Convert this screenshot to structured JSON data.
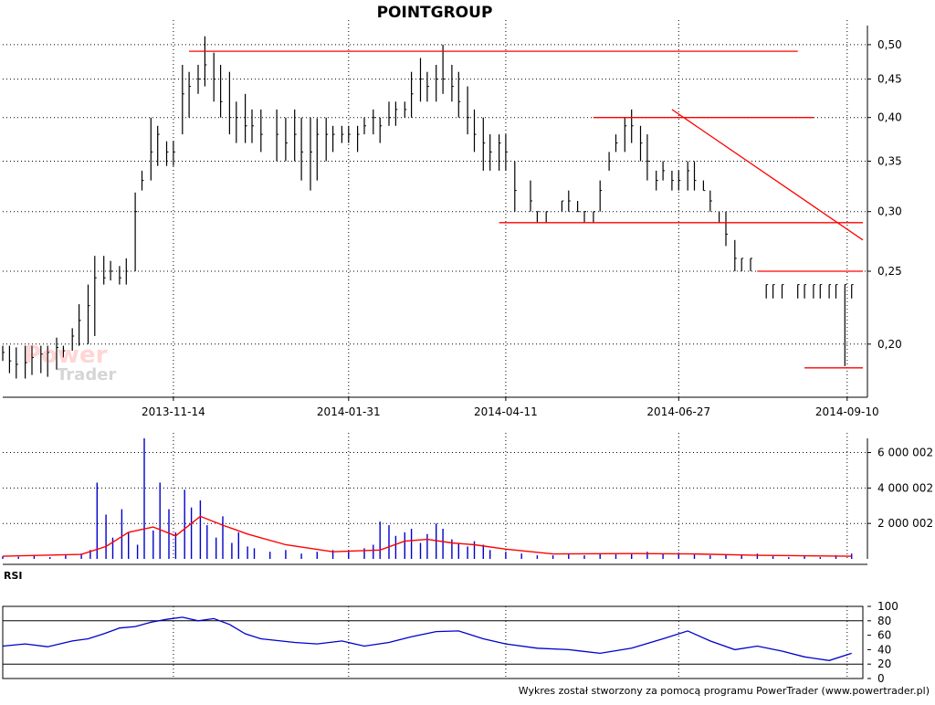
{
  "chart_data": [
    {
      "panel": "price",
      "type": "bar",
      "style": "ohlc-bars",
      "title": "POINTGROUP",
      "y_scale": "log",
      "ylim": [
        0.17,
        0.53
      ],
      "y_ticks": [
        "0,50",
        "0,45",
        "0,40",
        "0,35",
        "0,30",
        "0,25",
        "0,20"
      ],
      "y_tick_values": [
        0.5,
        0.45,
        0.4,
        0.35,
        0.3,
        0.25,
        0.2
      ],
      "x_ticks": [
        "2013-11-14",
        "2014-01-31",
        "2014-04-11",
        "2014-06-27",
        "2014-09-10"
      ],
      "x_tick_dates": [
        "2013-11-14",
        "2014-01-31",
        "2014-04-11",
        "2014-06-27",
        "2014-09-10"
      ],
      "xlim": [
        "2013-08-30",
        "2014-09-17"
      ],
      "grid": true,
      "bar_color": "#000000",
      "line_color": "#ff0000",
      "series": [
        {
          "x": [
            "2013-08-30",
            "2013-09-02",
            "2013-09-05",
            "2013-09-09",
            "2013-09-12",
            "2013-09-16",
            "2013-09-19",
            "2013-09-23",
            "2013-09-26",
            "2013-09-30",
            "2013-10-03",
            "2013-10-07",
            "2013-10-10",
            "2013-10-14",
            "2013-10-17",
            "2013-10-21",
            "2013-10-24",
            "2013-10-28",
            "2013-10-31",
            "2013-11-04",
            "2013-11-07",
            "2013-11-11",
            "2013-11-14",
            "2013-11-18",
            "2013-11-21",
            "2013-11-25",
            "2013-11-28",
            "2013-12-02",
            "2013-12-05",
            "2013-12-09",
            "2013-12-12",
            "2013-12-16",
            "2013-12-19",
            "2013-12-23",
            "2013-12-30",
            "2014-01-03",
            "2014-01-07",
            "2014-01-10",
            "2014-01-14",
            "2014-01-17",
            "2014-01-21",
            "2014-01-24",
            "2014-01-28",
            "2014-01-31",
            "2014-02-04",
            "2014-02-07",
            "2014-02-11",
            "2014-02-14",
            "2014-02-18",
            "2014-02-21",
            "2014-02-25",
            "2014-02-28",
            "2014-03-04",
            "2014-03-07",
            "2014-03-11",
            "2014-03-14",
            "2014-03-18",
            "2014-03-21",
            "2014-03-25",
            "2014-03-28",
            "2014-04-01",
            "2014-04-04",
            "2014-04-08",
            "2014-04-11",
            "2014-04-15",
            "2014-04-22",
            "2014-04-25",
            "2014-04-29",
            "2014-05-06",
            "2014-05-09",
            "2014-05-13",
            "2014-05-16",
            "2014-05-20",
            "2014-05-23",
            "2014-05-27",
            "2014-05-30",
            "2014-06-03",
            "2014-06-06",
            "2014-06-10",
            "2014-06-13",
            "2014-06-17",
            "2014-06-20",
            "2014-06-24",
            "2014-06-27",
            "2014-07-01",
            "2014-07-04",
            "2014-07-08",
            "2014-07-11",
            "2014-07-15",
            "2014-07-18",
            "2014-07-22",
            "2014-07-25",
            "2014-07-29",
            "2014-08-01",
            "2014-08-05",
            "2014-08-08",
            "2014-08-12",
            "2014-08-19",
            "2014-08-22",
            "2014-08-26",
            "2014-08-29",
            "2014-09-02",
            "2014-09-05",
            "2014-09-09",
            "2014-09-12"
          ],
          "high": [
            0.199,
            0.199,
            0.198,
            0.199,
            0.199,
            0.199,
            0.199,
            0.204,
            0.199,
            0.21,
            0.226,
            0.24,
            0.262,
            0.262,
            0.258,
            0.254,
            0.26,
            0.318,
            0.34,
            0.4,
            0.39,
            0.372,
            0.372,
            0.47,
            0.46,
            0.47,
            0.513,
            0.488,
            0.47,
            0.46,
            0.42,
            0.43,
            0.41,
            0.41,
            0.41,
            0.4,
            0.41,
            0.4,
            0.4,
            0.399,
            0.4,
            0.39,
            0.39,
            0.39,
            0.39,
            0.4,
            0.41,
            0.4,
            0.42,
            0.42,
            0.42,
            0.46,
            0.48,
            0.46,
            0.47,
            0.5,
            0.47,
            0.46,
            0.44,
            0.41,
            0.4,
            0.38,
            0.38,
            0.38,
            0.35,
            0.33,
            0.3,
            0.3,
            0.31,
            0.32,
            0.31,
            0.3,
            0.3,
            0.33,
            0.36,
            0.38,
            0.4,
            0.41,
            0.39,
            0.38,
            0.34,
            0.35,
            0.34,
            0.34,
            0.35,
            0.35,
            0.33,
            0.32,
            0.3,
            0.3,
            0.275,
            0.26,
            0.26,
            0.25,
            0.24,
            0.24,
            0.24,
            0.24,
            0.24,
            0.24,
            0.24,
            0.24,
            0.24,
            0.24,
            0.24
          ],
          "low": [
            0.19,
            0.183,
            0.18,
            0.18,
            0.182,
            0.183,
            0.181,
            0.185,
            0.192,
            0.196,
            0.199,
            0.2,
            0.205,
            0.24,
            0.243,
            0.24,
            0.24,
            0.25,
            0.32,
            0.33,
            0.345,
            0.345,
            0.345,
            0.38,
            0.4,
            0.43,
            0.44,
            0.42,
            0.4,
            0.38,
            0.37,
            0.37,
            0.37,
            0.36,
            0.35,
            0.35,
            0.35,
            0.33,
            0.32,
            0.33,
            0.35,
            0.36,
            0.37,
            0.37,
            0.36,
            0.38,
            0.38,
            0.37,
            0.39,
            0.39,
            0.4,
            0.4,
            0.42,
            0.42,
            0.42,
            0.43,
            0.42,
            0.4,
            0.38,
            0.36,
            0.34,
            0.34,
            0.34,
            0.34,
            0.3,
            0.3,
            0.29,
            0.29,
            0.3,
            0.3,
            0.3,
            0.29,
            0.29,
            0.3,
            0.34,
            0.36,
            0.36,
            0.37,
            0.35,
            0.33,
            0.32,
            0.33,
            0.32,
            0.32,
            0.32,
            0.32,
            0.32,
            0.3,
            0.29,
            0.27,
            0.25,
            0.25,
            0.25,
            0.25,
            0.23,
            0.23,
            0.23,
            0.23,
            0.23,
            0.23,
            0.23,
            0.23,
            0.23,
            0.187,
            0.23
          ],
          "close": [
            0.195,
            0.19,
            0.188,
            0.189,
            0.192,
            0.194,
            0.195,
            0.198,
            0.196,
            0.205,
            0.215,
            0.225,
            0.245,
            0.245,
            0.25,
            0.245,
            0.25,
            0.3,
            0.33,
            0.36,
            0.38,
            0.36,
            0.36,
            0.43,
            0.44,
            0.45,
            0.47,
            0.45,
            0.42,
            0.4,
            0.4,
            0.39,
            0.39,
            0.38,
            0.38,
            0.37,
            0.38,
            0.36,
            0.36,
            0.38,
            0.38,
            0.38,
            0.38,
            0.38,
            0.38,
            0.39,
            0.4,
            0.39,
            0.4,
            0.41,
            0.41,
            0.43,
            0.45,
            0.44,
            0.45,
            0.45,
            0.44,
            0.42,
            0.4,
            0.38,
            0.37,
            0.36,
            0.37,
            0.36,
            0.32,
            0.31,
            0.3,
            0.3,
            0.31,
            0.31,
            0.3,
            0.3,
            0.3,
            0.32,
            0.35,
            0.37,
            0.39,
            0.39,
            0.37,
            0.35,
            0.33,
            0.34,
            0.33,
            0.33,
            0.34,
            0.33,
            0.32,
            0.31,
            0.29,
            0.28,
            0.26,
            0.26,
            0.26,
            0.25,
            0.24,
            0.24,
            0.24,
            0.24,
            0.24,
            0.24,
            0.24,
            0.24,
            0.24,
            0.24,
            0.24
          ]
        }
      ],
      "trend_lines": [
        {
          "x": [
            "2013-11-21",
            "2014-08-19"
          ],
          "y": [
            0.49,
            0.49
          ]
        },
        {
          "x": [
            "2014-05-20",
            "2014-08-26"
          ],
          "y": [
            0.4,
            0.4
          ]
        },
        {
          "x": [
            "2014-04-08",
            "2014-09-17"
          ],
          "y": [
            0.29,
            0.29
          ]
        },
        {
          "x": [
            "2014-08-01",
            "2014-09-17"
          ],
          "y": [
            0.25,
            0.25
          ]
        },
        {
          "x": [
            "2014-08-22",
            "2014-09-17"
          ],
          "y": [
            0.186,
            0.186
          ]
        },
        {
          "x": [
            "2014-06-24",
            "2014-09-17"
          ],
          "y": [
            0.41,
            0.275
          ]
        }
      ]
    },
    {
      "panel": "volume",
      "type": "bar",
      "ylim": [
        0,
        6800000
      ],
      "y_ticks": [
        "6 000 002",
        "4 000 002",
        "2 000 002"
      ],
      "y_tick_values": [
        6000002,
        4000002,
        2000002
      ],
      "grid": true,
      "bar_color": "#0000cc",
      "avg_color": "#ff0000",
      "series": [
        {
          "name": "volume",
          "x": [
            "2013-08-30",
            "2013-09-06",
            "2013-09-13",
            "2013-09-20",
            "2013-09-27",
            "2013-10-04",
            "2013-10-08",
            "2013-10-11",
            "2013-10-15",
            "2013-10-18",
            "2013-10-22",
            "2013-10-25",
            "2013-10-29",
            "2013-11-01",
            "2013-11-05",
            "2013-11-08",
            "2013-11-12",
            "2013-11-15",
            "2013-11-19",
            "2013-11-22",
            "2013-11-26",
            "2013-11-29",
            "2013-12-03",
            "2013-12-06",
            "2013-12-10",
            "2013-12-13",
            "2013-12-17",
            "2013-12-20",
            "2013-12-27",
            "2014-01-03",
            "2014-01-10",
            "2014-01-17",
            "2014-01-24",
            "2014-01-31",
            "2014-02-07",
            "2014-02-11",
            "2014-02-14",
            "2014-02-18",
            "2014-02-21",
            "2014-02-25",
            "2014-02-28",
            "2014-03-04",
            "2014-03-07",
            "2014-03-11",
            "2014-03-14",
            "2014-03-18",
            "2014-03-21",
            "2014-03-25",
            "2014-03-28",
            "2014-04-01",
            "2014-04-04",
            "2014-04-11",
            "2014-04-18",
            "2014-04-25",
            "2014-05-02",
            "2014-05-09",
            "2014-05-16",
            "2014-05-23",
            "2014-05-30",
            "2014-06-06",
            "2014-06-13",
            "2014-06-20",
            "2014-06-27",
            "2014-07-04",
            "2014-07-11",
            "2014-07-18",
            "2014-07-25",
            "2014-08-01",
            "2014-08-08",
            "2014-08-15",
            "2014-08-22",
            "2014-08-29",
            "2014-09-05",
            "2014-09-12"
          ],
          "values": [
            150000,
            120000,
            180000,
            100000,
            200000,
            300000,
            500000,
            4300000,
            2500000,
            1200000,
            2800000,
            1500000,
            800000,
            6800000,
            1600000,
            4300000,
            2800000,
            1500000,
            3900000,
            2900000,
            3300000,
            1900000,
            1200000,
            2400000,
            900000,
            1500000,
            700000,
            600000,
            400000,
            500000,
            300000,
            400000,
            500000,
            400000,
            600000,
            800000,
            2100000,
            1900000,
            1300000,
            1500000,
            1700000,
            900000,
            1400000,
            2000000,
            1700000,
            1100000,
            900000,
            700000,
            1000000,
            800000,
            500000,
            400000,
            300000,
            200000,
            200000,
            250000,
            200000,
            300000,
            250000,
            300000,
            400000,
            300000,
            350000,
            250000,
            200000,
            250000,
            200000,
            300000,
            150000,
            100000,
            150000,
            100000,
            200000,
            300000
          ]
        }
      ],
      "moving_average": {
        "x": [
          "2013-08-30",
          "2013-10-04",
          "2013-10-15",
          "2013-10-25",
          "2013-11-05",
          "2013-11-15",
          "2013-11-26",
          "2013-12-06",
          "2013-12-17",
          "2014-01-03",
          "2014-01-24",
          "2014-02-14",
          "2014-02-25",
          "2014-03-07",
          "2014-03-18",
          "2014-03-28",
          "2014-04-11",
          "2014-05-02",
          "2014-06-06",
          "2014-07-04",
          "2014-08-01",
          "2014-09-12"
        ],
        "values": [
          150000,
          250000,
          700000,
          1500000,
          1800000,
          1300000,
          2400000,
          1900000,
          1400000,
          800000,
          400000,
          500000,
          1000000,
          1100000,
          900000,
          800000,
          550000,
          280000,
          300000,
          280000,
          200000,
          150000
        ]
      }
    },
    {
      "panel": "rsi",
      "type": "line",
      "title": "RSI",
      "ylim": [
        0,
        100
      ],
      "y_ticks": [
        "100",
        "80",
        "60",
        "40",
        "20",
        "0"
      ],
      "y_tick_values": [
        100,
        80,
        60,
        40,
        20,
        0
      ],
      "reference_levels": [
        80,
        20
      ],
      "grid": true,
      "line_color": "#0000cc",
      "series": [
        {
          "x": [
            "2013-08-30",
            "2013-09-09",
            "2013-09-19",
            "2013-09-30",
            "2013-10-07",
            "2013-10-14",
            "2013-10-21",
            "2013-10-28",
            "2013-11-04",
            "2013-11-11",
            "2013-11-18",
            "2013-11-25",
            "2013-12-02",
            "2013-12-09",
            "2013-12-16",
            "2013-12-23",
            "2014-01-07",
            "2014-01-17",
            "2014-01-28",
            "2014-02-07",
            "2014-02-18",
            "2014-02-28",
            "2014-03-11",
            "2014-03-21",
            "2014-04-01",
            "2014-04-11",
            "2014-04-25",
            "2014-05-09",
            "2014-05-23",
            "2014-06-06",
            "2014-06-20",
            "2014-07-01",
            "2014-07-11",
            "2014-07-22",
            "2014-08-01",
            "2014-08-12",
            "2014-08-22",
            "2014-09-02",
            "2014-09-12"
          ],
          "values": [
            45,
            48,
            44,
            52,
            55,
            62,
            70,
            72,
            78,
            82,
            85,
            80,
            83,
            75,
            62,
            55,
            50,
            48,
            52,
            45,
            50,
            58,
            65,
            66,
            55,
            48,
            42,
            40,
            35,
            42,
            55,
            66,
            52,
            40,
            45,
            38,
            30,
            25,
            35
          ]
        }
      ]
    }
  ],
  "footer": "Wykres został stworzony za pomocą programu PowerTrader (www.powertrader.pl)",
  "watermark": {
    "line1": "Power",
    "line2": "Trader"
  }
}
